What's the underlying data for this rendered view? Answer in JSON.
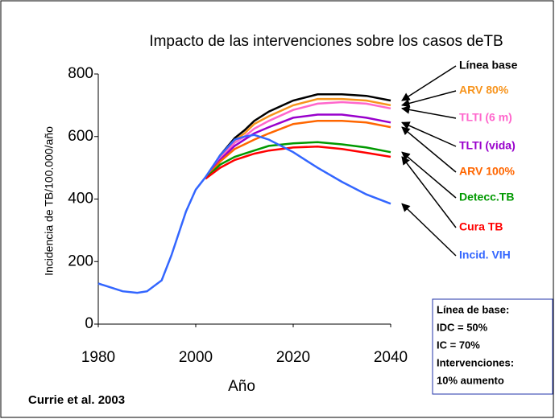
{
  "chart_data": {
    "type": "line",
    "title": "Impacto de las intervenciones sobre los casos deTB",
    "x_label": "Año",
    "y_label": "Incidencia de TB/100.000/año",
    "source": "Currie et al. 2003",
    "note": [
      "Línea de base:",
      "IDC = 50%",
      "IC = 70%",
      "Intervenciones:",
      "10% aumento"
    ],
    "x": [
      1980,
      1985,
      1988,
      1990,
      1993,
      1995,
      1998,
      2000,
      2002,
      2005,
      2008,
      2010,
      2012,
      2015,
      2020,
      2025,
      2030,
      2035,
      2040
    ],
    "xlim": [
      1980,
      2040
    ],
    "xticks": [
      1980,
      2000,
      2020,
      2040
    ],
    "ylim": [
      0,
      800
    ],
    "yticks": [
      0,
      200,
      400,
      600,
      800
    ],
    "series": [
      {
        "name": "Línea base",
        "color": "#000000",
        "values": [
          null,
          null,
          null,
          null,
          null,
          null,
          null,
          null,
          465,
          540,
          595,
          620,
          650,
          680,
          715,
          735,
          735,
          730,
          715
        ]
      },
      {
        "name": "ARV 80%",
        "color": "#f7941d",
        "values": [
          null,
          null,
          null,
          null,
          null,
          null,
          null,
          null,
          465,
          535,
          588,
          610,
          640,
          665,
          700,
          720,
          720,
          715,
          700
        ]
      },
      {
        "name": "TLTI (6 m)",
        "color": "#ff66cc",
        "values": [
          null,
          null,
          null,
          null,
          null,
          null,
          null,
          null,
          465,
          530,
          580,
          600,
          625,
          650,
          685,
          705,
          710,
          705,
          690
        ]
      },
      {
        "name": "TLTI (vida)",
        "color": "#9900cc",
        "values": [
          null,
          null,
          null,
          null,
          null,
          null,
          null,
          null,
          465,
          525,
          570,
          590,
          610,
          630,
          660,
          670,
          670,
          660,
          645
        ]
      },
      {
        "name": "ARV 100%",
        "color": "#ff6600",
        "values": [
          null,
          null,
          null,
          null,
          null,
          null,
          null,
          null,
          465,
          520,
          560,
          575,
          590,
          610,
          640,
          650,
          650,
          645,
          630
        ]
      },
      {
        "name": "Detecc.TB",
        "color": "#009900",
        "values": [
          null,
          null,
          null,
          null,
          null,
          null,
          null,
          null,
          465,
          510,
          535,
          545,
          555,
          570,
          578,
          582,
          575,
          565,
          550
        ]
      },
      {
        "name": "Cura TB",
        "color": "#ff0000",
        "values": [
          null,
          null,
          null,
          null,
          null,
          null,
          null,
          null,
          465,
          500,
          525,
          535,
          545,
          555,
          565,
          568,
          560,
          548,
          535
        ]
      },
      {
        "name": "Incid. VIH",
        "color": "#3366ff",
        "values": [
          130,
          105,
          100,
          105,
          140,
          220,
          360,
          430,
          470,
          540,
          590,
          600,
          605,
          590,
          550,
          500,
          455,
          415,
          385
        ]
      }
    ]
  }
}
